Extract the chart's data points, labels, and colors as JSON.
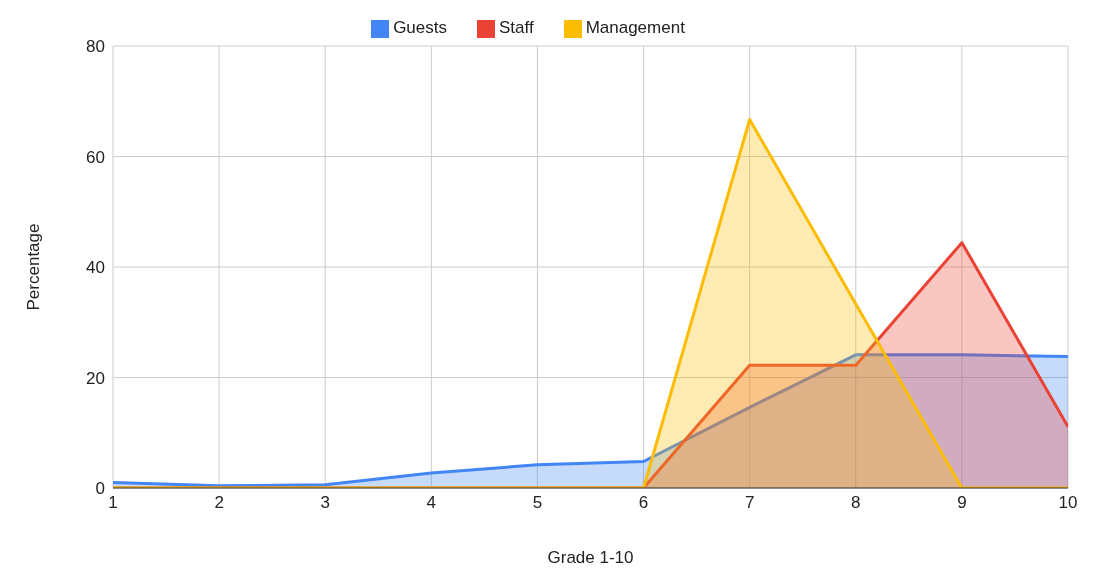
{
  "chart_data": {
    "type": "area",
    "xlabel": "Grade 1-10",
    "ylabel": "Percentage",
    "x": [
      1,
      2,
      3,
      4,
      5,
      6,
      7,
      8,
      9,
      10
    ],
    "series": [
      {
        "name": "Guests",
        "color": "#4285f4",
        "values": [
          1.0,
          0.4,
          0.6,
          2.7,
          4.2,
          4.8,
          14.6,
          24.1,
          24.1,
          23.8
        ]
      },
      {
        "name": "Staff",
        "color": "#ea4335",
        "values": [
          0,
          0,
          0,
          0,
          0,
          0,
          22.2,
          22.2,
          44.4,
          11.1
        ]
      },
      {
        "name": "Management",
        "color": "#fbbc04",
        "values": [
          0,
          0,
          0,
          0,
          0,
          0,
          66.7,
          33.3,
          0,
          0
        ]
      }
    ],
    "xlim": [
      1,
      10
    ],
    "xticks": [
      1,
      2,
      3,
      4,
      5,
      6,
      7,
      8,
      9,
      10
    ],
    "ylim": [
      0,
      80
    ],
    "yticks": [
      0,
      20,
      40,
      60,
      80
    ],
    "grid": true,
    "legend": "top",
    "marker": "none",
    "line_style": "solid"
  }
}
